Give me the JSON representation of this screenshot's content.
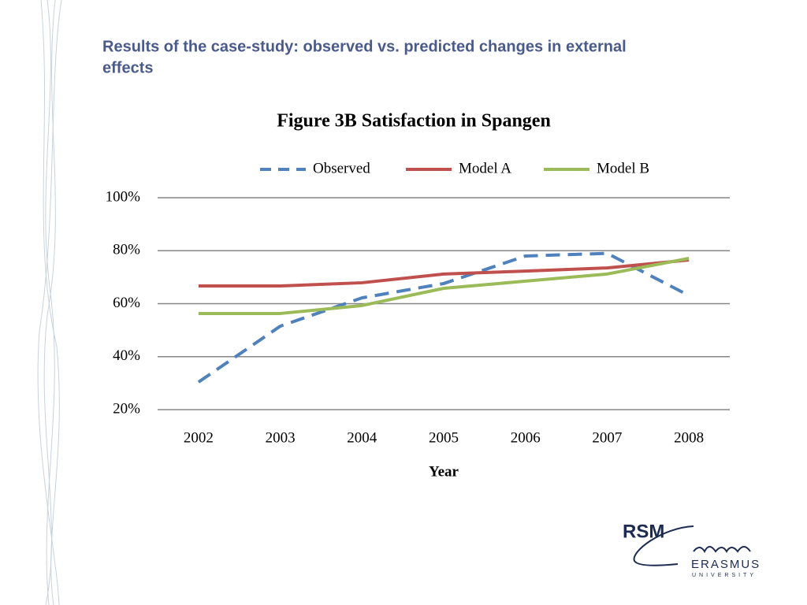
{
  "slide": {
    "title": "Results of the case-study: observed vs. predicted changes in external effects"
  },
  "logo": {
    "brand": "RSM",
    "name": "ERASMUS",
    "subtitle": "UNIVERSITY"
  },
  "chart_data": {
    "type": "line",
    "title": "Figure 3B Satisfaction in Spangen",
    "x_label": "Year",
    "categories": [
      "2002",
      "2003",
      "2004",
      "2005",
      "2006",
      "2007",
      "2008"
    ],
    "series": [
      {
        "name": "Observed",
        "color": "#4f81bd",
        "style": "dashed",
        "values": [
          30.4,
          51.5,
          62.2,
          67.6,
          78,
          79,
          63.1
        ]
      },
      {
        "name": "Model A",
        "color": "#c0504d",
        "style": "solid",
        "values": [
          66.7,
          66.7,
          67.9,
          71.2,
          72.3,
          73.5,
          76.5
        ]
      },
      {
        "name": "Model B",
        "color": "#9bbb59",
        "style": "solid",
        "values": [
          56.3,
          56.3,
          59.3,
          65.8,
          68.5,
          71.2,
          77.1
        ]
      }
    ],
    "ylim": [
      20,
      100
    ],
    "yticks": [
      {
        "value": 20,
        "label": "20%"
      },
      {
        "value": 40,
        "label": "40%"
      },
      {
        "value": 60,
        "label": "60%"
      },
      {
        "value": 80,
        "label": "80%"
      },
      {
        "value": 100,
        "label": "100%"
      }
    ],
    "grid": true,
    "legend": "top"
  }
}
